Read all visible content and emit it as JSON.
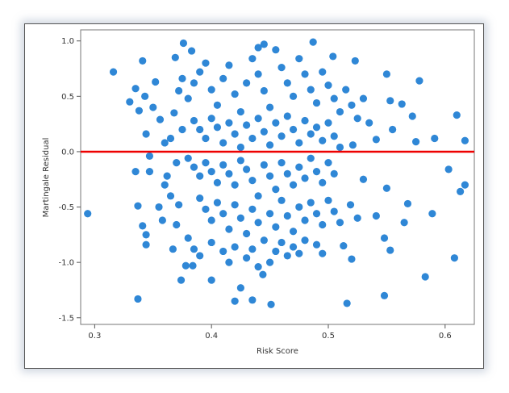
{
  "chart_data": {
    "type": "scatter",
    "xlabel": "Risk Score",
    "ylabel": "Martingale Residual",
    "xlim": [
      0.288,
      0.625
    ],
    "ylim": [
      -1.56,
      1.1
    ],
    "xticks": [
      "0.3",
      "0.4",
      "0.5",
      "0.6"
    ],
    "yticks": [
      "1.0",
      "0.5",
      "0.0",
      "-0.5",
      "-1.0",
      "-1.5"
    ],
    "grid": false,
    "marker_color": "#2f87d6",
    "reference_line": {
      "y": 0.0,
      "color": "#ee0000"
    },
    "points": [
      [
        0.294,
        -0.56
      ],
      [
        0.316,
        0.72
      ],
      [
        0.337,
        -1.33
      ],
      [
        0.341,
        0.82
      ],
      [
        0.335,
        0.57
      ],
      [
        0.33,
        0.45
      ],
      [
        0.337,
        -0.49
      ],
      [
        0.341,
        -0.67
      ],
      [
        0.344,
        -0.75
      ],
      [
        0.344,
        -0.84
      ],
      [
        0.338,
        0.37
      ],
      [
        0.343,
        0.5
      ],
      [
        0.347,
        -0.04
      ],
      [
        0.347,
        -0.18
      ],
      [
        0.335,
        -0.18
      ],
      [
        0.344,
        0.16
      ],
      [
        0.352,
        0.63
      ],
      [
        0.356,
        0.29
      ],
      [
        0.36,
        0.08
      ],
      [
        0.55,
        0.7
      ],
      [
        0.553,
        0.46
      ],
      [
        0.578,
        0.64
      ],
      [
        0.61,
        0.33
      ],
      [
        0.617,
        0.1
      ],
      [
        0.617,
        -0.3
      ],
      [
        0.613,
        -0.36
      ],
      [
        0.608,
        -0.96
      ],
      [
        0.603,
        -0.16
      ],
      [
        0.591,
        0.12
      ],
      [
        0.589,
        -0.56
      ],
      [
        0.583,
        -1.13
      ],
      [
        0.568,
        -0.47
      ],
      [
        0.548,
        -1.3
      ],
      [
        0.516,
        -1.37
      ],
      [
        0.513,
        -0.85
      ],
      [
        0.52,
        -0.97
      ],
      [
        0.548,
        -0.78
      ],
      [
        0.553,
        -0.89
      ],
      [
        0.563,
        0.43
      ],
      [
        0.565,
        -0.64
      ],
      [
        0.572,
        0.32
      ],
      [
        0.575,
        0.09
      ],
      [
        0.555,
        0.2
      ],
      [
        0.541,
        0.11
      ],
      [
        0.521,
        0.06
      ],
      [
        0.53,
        -0.25
      ],
      [
        0.55,
        -0.33
      ],
      [
        0.541,
        -0.58
      ],
      [
        0.525,
        -0.6
      ],
      [
        0.519,
        -0.48
      ],
      [
        0.451,
        -1.38
      ],
      [
        0.435,
        -1.34
      ],
      [
        0.444,
        -1.11
      ],
      [
        0.42,
        -1.35
      ],
      [
        0.425,
        -1.23
      ],
      [
        0.4,
        -1.16
      ],
      [
        0.374,
        -1.16
      ],
      [
        0.384,
        -1.03
      ],
      [
        0.378,
        -1.03
      ],
      [
        0.367,
        -0.88
      ],
      [
        0.369,
        0.85
      ],
      [
        0.376,
        0.98
      ],
      [
        0.383,
        0.91
      ],
      [
        0.45,
        -1.0
      ],
      [
        0.445,
        0.97
      ],
      [
        0.487,
        0.99
      ],
      [
        0.504,
        0.86
      ],
      [
        0.523,
        0.82
      ],
      [
        0.44,
        0.94
      ],
      [
        0.36,
        -0.3
      ],
      [
        0.365,
        -0.4
      ],
      [
        0.372,
        -0.48
      ],
      [
        0.37,
        -0.66
      ],
      [
        0.358,
        -0.62
      ],
      [
        0.362,
        -0.22
      ],
      [
        0.368,
        0.35
      ],
      [
        0.372,
        0.55
      ],
      [
        0.375,
        0.66
      ],
      [
        0.38,
        0.48
      ],
      [
        0.385,
        0.62
      ],
      [
        0.39,
        0.72
      ],
      [
        0.395,
        0.8
      ],
      [
        0.4,
        0.56
      ],
      [
        0.405,
        0.42
      ],
      [
        0.41,
        0.66
      ],
      [
        0.415,
        0.78
      ],
      [
        0.42,
        0.52
      ],
      [
        0.425,
        0.36
      ],
      [
        0.43,
        0.62
      ],
      [
        0.435,
        0.84
      ],
      [
        0.44,
        0.7
      ],
      [
        0.445,
        0.55
      ],
      [
        0.45,
        0.4
      ],
      [
        0.455,
        0.92
      ],
      [
        0.46,
        0.76
      ],
      [
        0.465,
        0.62
      ],
      [
        0.47,
        0.5
      ],
      [
        0.475,
        0.84
      ],
      [
        0.48,
        0.7
      ],
      [
        0.485,
        0.56
      ],
      [
        0.49,
        0.44
      ],
      [
        0.495,
        0.72
      ],
      [
        0.5,
        0.6
      ],
      [
        0.505,
        0.48
      ],
      [
        0.51,
        0.36
      ],
      [
        0.515,
        0.56
      ],
      [
        0.52,
        0.42
      ],
      [
        0.525,
        0.3
      ],
      [
        0.53,
        0.48
      ],
      [
        0.535,
        0.26
      ],
      [
        0.385,
        0.28
      ],
      [
        0.39,
        0.2
      ],
      [
        0.395,
        0.12
      ],
      [
        0.4,
        0.3
      ],
      [
        0.405,
        0.22
      ],
      [
        0.41,
        0.08
      ],
      [
        0.415,
        0.26
      ],
      [
        0.42,
        0.16
      ],
      [
        0.425,
        0.04
      ],
      [
        0.43,
        0.24
      ],
      [
        0.435,
        0.12
      ],
      [
        0.44,
        0.3
      ],
      [
        0.445,
        0.18
      ],
      [
        0.45,
        0.06
      ],
      [
        0.455,
        0.26
      ],
      [
        0.46,
        0.14
      ],
      [
        0.465,
        0.32
      ],
      [
        0.47,
        0.2
      ],
      [
        0.475,
        0.08
      ],
      [
        0.48,
        0.28
      ],
      [
        0.485,
        0.16
      ],
      [
        0.49,
        0.22
      ],
      [
        0.495,
        0.1
      ],
      [
        0.5,
        0.26
      ],
      [
        0.505,
        0.14
      ],
      [
        0.51,
        0.04
      ],
      [
        0.38,
        -0.06
      ],
      [
        0.385,
        -0.14
      ],
      [
        0.39,
        -0.22
      ],
      [
        0.395,
        -0.1
      ],
      [
        0.4,
        -0.18
      ],
      [
        0.405,
        -0.28
      ],
      [
        0.41,
        -0.12
      ],
      [
        0.415,
        -0.2
      ],
      [
        0.42,
        -0.3
      ],
      [
        0.425,
        -0.08
      ],
      [
        0.43,
        -0.16
      ],
      [
        0.435,
        -0.26
      ],
      [
        0.44,
        -0.4
      ],
      [
        0.445,
        -0.12
      ],
      [
        0.45,
        -0.22
      ],
      [
        0.455,
        -0.34
      ],
      [
        0.46,
        -0.1
      ],
      [
        0.465,
        -0.2
      ],
      [
        0.47,
        -0.3
      ],
      [
        0.475,
        -0.14
      ],
      [
        0.48,
        -0.24
      ],
      [
        0.485,
        -0.06
      ],
      [
        0.49,
        -0.18
      ],
      [
        0.495,
        -0.28
      ],
      [
        0.5,
        -0.1
      ],
      [
        0.505,
        -0.2
      ],
      [
        0.39,
        -0.42
      ],
      [
        0.395,
        -0.52
      ],
      [
        0.4,
        -0.62
      ],
      [
        0.405,
        -0.46
      ],
      [
        0.41,
        -0.56
      ],
      [
        0.415,
        -0.7
      ],
      [
        0.42,
        -0.48
      ],
      [
        0.425,
        -0.6
      ],
      [
        0.43,
        -0.74
      ],
      [
        0.435,
        -0.52
      ],
      [
        0.44,
        -0.64
      ],
      [
        0.445,
        -0.8
      ],
      [
        0.45,
        -0.56
      ],
      [
        0.455,
        -0.68
      ],
      [
        0.46,
        -0.44
      ],
      [
        0.465,
        -0.58
      ],
      [
        0.47,
        -0.72
      ],
      [
        0.475,
        -0.5
      ],
      [
        0.48,
        -0.62
      ],
      [
        0.485,
        -0.46
      ],
      [
        0.49,
        -0.56
      ],
      [
        0.495,
        -0.66
      ],
      [
        0.5,
        -0.44
      ],
      [
        0.505,
        -0.54
      ],
      [
        0.51,
        -0.64
      ],
      [
        0.38,
        -0.78
      ],
      [
        0.385,
        -0.88
      ],
      [
        0.39,
        -0.94
      ],
      [
        0.4,
        -0.82
      ],
      [
        0.41,
        -0.9
      ],
      [
        0.415,
        -1.0
      ],
      [
        0.42,
        -0.86
      ],
      [
        0.43,
        -0.96
      ],
      [
        0.435,
        -0.88
      ],
      [
        0.44,
        -1.04
      ],
      [
        0.455,
        -0.9
      ],
      [
        0.46,
        -0.82
      ],
      [
        0.465,
        -0.94
      ],
      [
        0.47,
        -0.86
      ],
      [
        0.475,
        -0.92
      ],
      [
        0.48,
        -0.8
      ],
      [
        0.49,
        -0.84
      ],
      [
        0.495,
        -0.92
      ],
      [
        0.355,
        -0.5
      ],
      [
        0.35,
        0.4
      ],
      [
        0.365,
        0.12
      ],
      [
        0.37,
        -0.1
      ],
      [
        0.375,
        0.2
      ]
    ]
  }
}
